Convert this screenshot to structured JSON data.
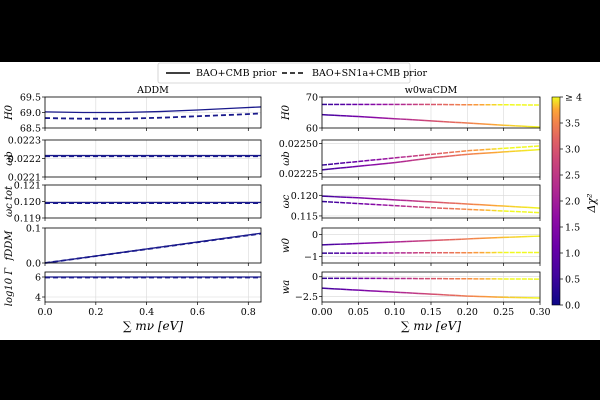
{
  "legend": {
    "solid_label": "BAO+CMB prior",
    "dashed_label": "BAO+SN1a+CMB prior"
  },
  "colorbar": {
    "label": "Δχ²",
    "ticks": [
      "0.0",
      "0.5",
      "1.0",
      "1.5",
      "2.0",
      "2.5",
      "3.0",
      "3.5",
      "≥ 4"
    ],
    "range": [
      0,
      4
    ]
  },
  "chart_data": [
    {
      "id": "left",
      "type": "line",
      "title": "ADDM",
      "xlabel": "∑ mν [eV]",
      "xlim": [
        0,
        0.85
      ],
      "xticks": [
        0.0,
        0.2,
        0.4,
        0.6,
        0.8
      ],
      "xtick_labels": [
        "0.0",
        "0.2",
        "0.4",
        "0.6",
        "0.8"
      ],
      "color": "#1a1a8c",
      "panels": [
        {
          "ylabel": "H0",
          "ylim": [
            68.5,
            69.5
          ],
          "yticks": [
            68.5,
            69.0,
            69.5
          ],
          "ytick_labels": [
            "68.5",
            "69.0",
            "69.5"
          ],
          "x": [
            0,
            0.15,
            0.3,
            0.45,
            0.6,
            0.75,
            0.85
          ],
          "solid": [
            69.02,
            69.0,
            69.0,
            69.03,
            69.08,
            69.14,
            69.18
          ],
          "dashed": [
            68.82,
            68.8,
            68.8,
            68.83,
            68.88,
            68.93,
            68.97
          ]
        },
        {
          "ylabel": "ωb",
          "ylim": [
            0.0221,
            0.0223
          ],
          "yticks": [
            0.0221,
            0.0222,
            0.0223
          ],
          "ytick_labels": [
            "0.0221",
            "0.0222",
            "0.0223"
          ],
          "x": [
            0,
            0.85
          ],
          "solid": [
            0.022216,
            0.022216
          ],
          "dashed": [
            0.022212,
            0.022212
          ]
        },
        {
          "ylabel": "ωc tot",
          "ylim": [
            0.119,
            0.121
          ],
          "yticks": [
            0.119,
            0.12,
            0.121
          ],
          "ytick_labels": [
            "0.119",
            "0.120",
            "0.121"
          ],
          "x": [
            0,
            0.85
          ],
          "solid": [
            0.11994,
            0.11994
          ],
          "dashed": [
            0.1199,
            0.1199
          ]
        },
        {
          "ylabel": "fDDM",
          "ylim": [
            0.0,
            0.1
          ],
          "yticks": [
            0.0,
            0.1
          ],
          "ytick_labels": [
            "0.0",
            "0.1"
          ],
          "x": [
            0,
            0.85
          ],
          "solid": [
            0.0,
            0.085
          ],
          "dashed": [
            0.0,
            0.084
          ]
        },
        {
          "ylabel": "log10 Γ",
          "ylim": [
            3.5,
            6.5
          ],
          "yticks": [
            4,
            6
          ],
          "ytick_labels": [
            "4",
            "6"
          ],
          "x": [
            0,
            0.85
          ],
          "solid": [
            6.0,
            6.0
          ],
          "dashed": [
            5.95,
            5.95
          ]
        }
      ]
    },
    {
      "id": "right",
      "type": "line",
      "title": "w0waCDM",
      "xlabel": "∑ mν [eV]",
      "xlim": [
        0,
        0.3
      ],
      "xticks": [
        0.0,
        0.05,
        0.1,
        0.15,
        0.2,
        0.25,
        0.3
      ],
      "xtick_labels": [
        "0.00",
        "0.05",
        "0.10",
        "0.15",
        "0.20",
        "0.25",
        "0.30"
      ],
      "colored_by": "Δχ²",
      "panels": [
        {
          "ylabel": "H0",
          "ylim": [
            60,
            70
          ],
          "yticks": [
            60,
            70
          ],
          "ytick_labels": [
            "60",
            "70"
          ],
          "x": [
            0,
            0.05,
            0.1,
            0.15,
            0.2,
            0.25,
            0.3
          ],
          "solid": [
            64.3,
            63.7,
            63.0,
            62.3,
            61.6,
            60.9,
            60.3
          ],
          "dashed": [
            67.6,
            67.6,
            67.6,
            67.6,
            67.5,
            67.5,
            67.4
          ]
        },
        {
          "ylabel": "ωb",
          "ylim": [
            0.02222,
            0.02253
          ],
          "yticks": [
            0.02225,
            0.0225
          ],
          "ytick_labels": [
            "0.02225",
            "0.02250"
          ],
          "x": [
            0,
            0.05,
            0.1,
            0.15,
            0.2,
            0.25,
            0.3
          ],
          "solid": [
            0.02228,
            0.02231,
            0.02234,
            0.02238,
            0.02241,
            0.02243,
            0.02245
          ],
          "dashed": [
            0.02232,
            0.02235,
            0.02238,
            0.02241,
            0.02244,
            0.02246,
            0.02248
          ]
        },
        {
          "ylabel": "ωc",
          "ylim": [
            0.1145,
            0.1225
          ],
          "yticks": [
            0.115,
            0.12
          ],
          "ytick_labels": [
            "0.115",
            "0.120"
          ],
          "x": [
            0,
            0.05,
            0.1,
            0.15,
            0.2,
            0.25,
            0.3
          ],
          "solid": [
            0.1198,
            0.1194,
            0.1189,
            0.1184,
            0.1179,
            0.1174,
            0.1169
          ],
          "dashed": [
            0.1185,
            0.118,
            0.1175,
            0.117,
            0.1166,
            0.1162,
            0.1158
          ]
        },
        {
          "ylabel": "w0",
          "ylim": [
            -1.3,
            0.3
          ],
          "yticks": [
            -1,
            0
          ],
          "ytick_labels": [
            "−1",
            "0"
          ],
          "x": [
            0,
            0.05,
            0.1,
            0.15,
            0.2,
            0.25,
            0.3
          ],
          "solid": [
            -0.47,
            -0.41,
            -0.34,
            -0.27,
            -0.2,
            -0.13,
            -0.07
          ],
          "dashed": [
            -0.85,
            -0.85,
            -0.84,
            -0.83,
            -0.83,
            -0.82,
            -0.82
          ]
        },
        {
          "ylabel": "wa",
          "ylim": [
            -3.2,
            0.6
          ],
          "yticks": [
            -2.5,
            0
          ],
          "ytick_labels": [
            "−2.5",
            "0"
          ],
          "x": [
            0,
            0.05,
            0.1,
            0.15,
            0.2,
            0.25,
            0.3
          ],
          "solid": [
            -1.45,
            -1.7,
            -1.95,
            -2.2,
            -2.45,
            -2.6,
            -2.7
          ],
          "dashed": [
            -0.2,
            -0.2,
            -0.22,
            -0.24,
            -0.26,
            -0.28,
            -0.3
          ]
        }
      ],
      "dchi2_solid": [
        0.4,
        1.0,
        1.6,
        2.3,
        3.0,
        3.7,
        4.0
      ],
      "dchi2_dashed": [
        0.3,
        0.9,
        1.6,
        2.4,
        3.2,
        4.0,
        4.0
      ]
    }
  ]
}
